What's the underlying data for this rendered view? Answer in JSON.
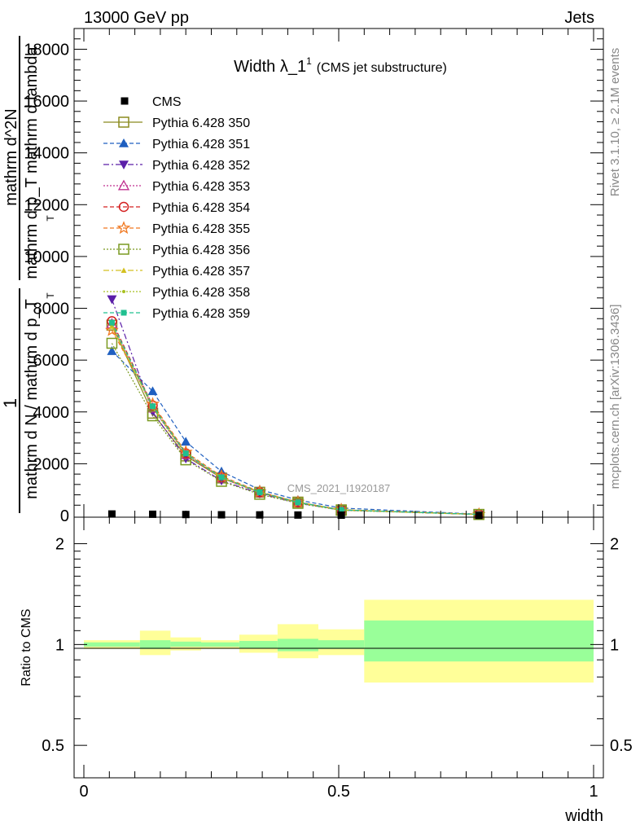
{
  "header": {
    "left": "13000 GeV pp",
    "right": "Jets",
    "rivet": "Rivet 3.1.10, ≥ 2.1M events",
    "mcplots": "mcplots.cern.ch [arXiv:1306.3436]",
    "watermark": "CMS_2021_I1920187"
  },
  "chart_data": {
    "type": "line",
    "title_main": "Width λ_1",
    "title_sup": "1",
    "title_sub": "(CMS jet substructure)",
    "ylabel_fraction_numerator": "1",
    "ylabel_fraction_denominator": "mathrm d N / mathrm d p_T",
    "ylabel_numerator_line1": "mathrm d^2N",
    "ylabel_numerator_line2": "mathrm d p_T mathrm d lambda",
    "ylabel_sub_T": "T",
    "ratio_ylabel": "Ratio to CMS",
    "xlabel": "width",
    "xlim": [
      0,
      1
    ],
    "ylim": [
      0,
      18800
    ],
    "y_ticks": [
      2000,
      4000,
      6000,
      8000,
      10000,
      12000,
      14000,
      16000,
      18000
    ],
    "y_tick_labels": [
      "2000",
      "4000",
      "6000",
      "8000",
      "10000",
      "12000",
      "14000",
      "16000",
      "18000"
    ],
    "y_zero_label": "0",
    "x_ticks": [
      0,
      0.5,
      1
    ],
    "x_tick_labels": [
      "0",
      "0.5",
      "1"
    ],
    "ratio_ylim": [
      0.4,
      2.4
    ],
    "ratio_ticks": [
      0.5,
      1,
      2
    ],
    "ratio_tick_labels": [
      "0.5",
      "1",
      "2"
    ],
    "x": [
      0.055,
      0.135,
      0.2,
      0.27,
      0.345,
      0.42,
      0.505,
      0.775
    ],
    "cms": {
      "name": "CMS",
      "values": [
        60,
        50,
        40,
        30,
        25,
        20,
        15,
        5
      ]
    },
    "series": [
      {
        "name": "Pythia 6.428 350",
        "color": "#8b8b1f",
        "marker": "square-open",
        "dash": "solid",
        "values": [
          7350,
          3950,
          2300,
          1450,
          900,
          520,
          220,
          45
        ]
      },
      {
        "name": "Pythia 6.428 351",
        "color": "#1f5fc0",
        "marker": "triangle-up",
        "dash": "dashed",
        "values": [
          6350,
          4800,
          2850,
          1700,
          1000,
          600,
          290,
          55
        ]
      },
      {
        "name": "Pythia 6.428 352",
        "color": "#5b1fa8",
        "marker": "triangle-down",
        "dash": "dashdot",
        "values": [
          8350,
          4000,
          2200,
          1350,
          850,
          480,
          210,
          42
        ]
      },
      {
        "name": "Pythia 6.428 353",
        "color": "#c03090",
        "marker": "triangle-open",
        "dash": "dotted",
        "values": [
          7400,
          4150,
          2350,
          1450,
          880,
          500,
          215,
          45
        ]
      },
      {
        "name": "Pythia 6.428 354",
        "color": "#d42020",
        "marker": "circle-open",
        "dash": "dashed",
        "values": [
          7500,
          4250,
          2400,
          1480,
          900,
          510,
          220,
          45
        ]
      },
      {
        "name": "Pythia 6.428 355",
        "color": "#f07820",
        "marker": "star-open",
        "dash": "dashed",
        "values": [
          7150,
          4300,
          2450,
          1520,
          920,
          520,
          225,
          46
        ]
      },
      {
        "name": "Pythia 6.428 356",
        "color": "#7a9a20",
        "marker": "square-open",
        "dash": "dotted",
        "values": [
          6650,
          3850,
          2150,
          1320,
          820,
          470,
          200,
          40
        ]
      },
      {
        "name": "Pythia 6.428 357",
        "color": "#d4c020",
        "marker": "triangle-small",
        "dash": "dashdot",
        "values": [
          7300,
          4200,
          2400,
          1470,
          890,
          505,
          218,
          44
        ]
      },
      {
        "name": "Pythia 6.428 358",
        "color": "#a8c020",
        "marker": "dot",
        "dash": "dotted",
        "values": [
          7350,
          4150,
          2380,
          1460,
          885,
          500,
          216,
          44
        ]
      },
      {
        "name": "Pythia 6.428 359",
        "color": "#20c090",
        "marker": "square-filled",
        "dash": "dashed",
        "values": [
          7450,
          4220,
          2400,
          1480,
          895,
          508,
          220,
          45
        ]
      }
    ],
    "ratio_bands": {
      "x_edges": [
        0,
        0.11,
        0.17,
        0.23,
        0.305,
        0.38,
        0.46,
        0.55,
        1.0
      ],
      "inner": [
        [
          0.985,
          1.015
        ],
        [
          0.97,
          1.03
        ],
        [
          0.985,
          1.02
        ],
        [
          0.985,
          1.015
        ],
        [
          0.975,
          1.025
        ],
        [
          0.955,
          1.04
        ],
        [
          0.97,
          1.03
        ],
        [
          0.89,
          1.18
        ]
      ],
      "outer": [
        [
          0.97,
          1.03
        ],
        [
          0.93,
          1.1
        ],
        [
          0.96,
          1.05
        ],
        [
          0.97,
          1.03
        ],
        [
          0.945,
          1.07
        ],
        [
          0.91,
          1.15
        ],
        [
          0.93,
          1.11
        ],
        [
          0.77,
          1.36
        ]
      ],
      "inner_color": "#99ff99",
      "outer_color": "#ffff99"
    }
  }
}
